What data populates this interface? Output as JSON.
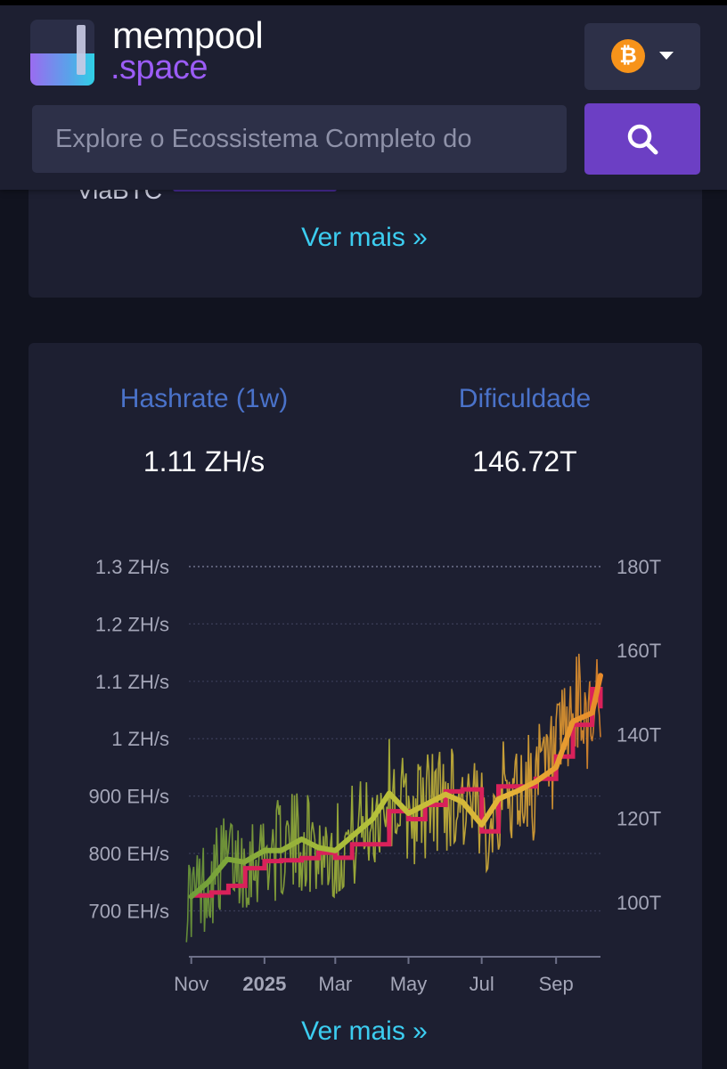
{
  "header": {
    "logo_word": "mempool",
    "logo_suffix": ".space",
    "network_symbol": "₿",
    "network_icon": "bitcoin-icon",
    "search_placeholder": "Explore o Ecossistema Completo do",
    "colors": {
      "accent": "#9b5cf6",
      "search_button": "#6c3fc4",
      "bitcoin": "#f7931a"
    }
  },
  "top_card": {
    "partial_label": "ViaBTC",
    "more_link": "Ver mais »"
  },
  "hashrate_card": {
    "hashrate_label": "Hashrate (1w)",
    "hashrate_value": "1.11 ZH/s",
    "difficulty_label": "Dificuldade",
    "difficulty_value": "146.72T",
    "more_link": "Ver mais »"
  },
  "chart_data": {
    "type": "line",
    "title": "",
    "xlabel": "",
    "ylabel": "",
    "x_ticks": [
      {
        "label": "Nov",
        "date": "2024-11-01",
        "bold": false
      },
      {
        "label": "2025",
        "date": "2025-01-01",
        "bold": true
      },
      {
        "label": "Mar",
        "date": "2025-03-01",
        "bold": false
      },
      {
        "label": "May",
        "date": "2025-05-01",
        "bold": false
      },
      {
        "label": "Jul",
        "date": "2025-07-01",
        "bold": false
      },
      {
        "label": "Sep",
        "date": "2025-09-01",
        "bold": false
      }
    ],
    "xlim": [
      "2024-10-30",
      "2025-10-08"
    ],
    "y_left": {
      "unit": "EH/s",
      "range": [
        620,
        1300
      ],
      "ticks": [
        {
          "label": "1.3 ZH/s",
          "value": 1300
        },
        {
          "label": "1.2 ZH/s",
          "value": 1200
        },
        {
          "label": "1.1 ZH/s",
          "value": 1100
        },
        {
          "label": "1 ZH/s",
          "value": 1000
        },
        {
          "label": "900 EH/s",
          "value": 900
        },
        {
          "label": "800 EH/s",
          "value": 800
        },
        {
          "label": "700 EH/s",
          "value": 700
        }
      ]
    },
    "y_right": {
      "unit": "T",
      "range": [
        87,
        180
      ],
      "ticks": [
        {
          "label": "180T",
          "value": 180
        },
        {
          "label": "160T",
          "value": 160
        },
        {
          "label": "140T",
          "value": 140
        },
        {
          "label": "120T",
          "value": 120
        },
        {
          "label": "100T",
          "value": 100
        }
      ]
    },
    "grid": true,
    "series": [
      {
        "key": "hashrate_1w",
        "axis": "left",
        "color_gradient": [
          "#6f9e3a",
          "#b5c23a",
          "#e6b338",
          "#e88a2a"
        ],
        "points": [
          [
            "2024-11-01",
            725
          ],
          [
            "2024-11-15",
            750
          ],
          [
            "2024-12-01",
            790
          ],
          [
            "2024-12-15",
            785
          ],
          [
            "2025-01-01",
            805
          ],
          [
            "2025-01-15",
            805
          ],
          [
            "2025-02-01",
            825
          ],
          [
            "2025-02-15",
            810
          ],
          [
            "2025-03-01",
            805
          ],
          [
            "2025-03-15",
            830
          ],
          [
            "2025-04-01",
            860
          ],
          [
            "2025-04-15",
            905
          ],
          [
            "2025-05-01",
            870
          ],
          [
            "2025-05-15",
            885
          ],
          [
            "2025-06-01",
            903
          ],
          [
            "2025-06-15",
            890
          ],
          [
            "2025-07-01",
            850
          ],
          [
            "2025-07-15",
            895
          ],
          [
            "2025-08-01",
            910
          ],
          [
            "2025-08-15",
            925
          ],
          [
            "2025-09-01",
            950
          ],
          [
            "2025-09-15",
            1030
          ],
          [
            "2025-10-01",
            1045
          ],
          [
            "2025-10-08",
            1110
          ]
        ]
      },
      {
        "key": "difficulty",
        "axis": "right",
        "color": "#d9215a",
        "points": [
          [
            "2024-11-01",
            101.6
          ],
          [
            "2024-11-18",
            102.3
          ],
          [
            "2024-12-02",
            103.9
          ],
          [
            "2024-12-16",
            108.1
          ],
          [
            "2025-01-01",
            109.8
          ],
          [
            "2025-01-15",
            110.0
          ],
          [
            "2025-02-01",
            110.5
          ],
          [
            "2025-02-15",
            111.8
          ],
          [
            "2025-03-01",
            110.6
          ],
          [
            "2025-03-15",
            113.8
          ],
          [
            "2025-04-01",
            113.8
          ],
          [
            "2025-04-15",
            121.7
          ],
          [
            "2025-05-01",
            119.8
          ],
          [
            "2025-05-15",
            123.2
          ],
          [
            "2025-06-01",
            126.4
          ],
          [
            "2025-06-15",
            126.9
          ],
          [
            "2025-07-01",
            116.9
          ],
          [
            "2025-07-15",
            127.6
          ],
          [
            "2025-08-01",
            127.6
          ],
          [
            "2025-08-15",
            129.4
          ],
          [
            "2025-09-01",
            134.7
          ],
          [
            "2025-09-15",
            142.3
          ],
          [
            "2025-10-01",
            150.8
          ],
          [
            "2025-10-08",
            146.7
          ]
        ]
      }
    ]
  }
}
